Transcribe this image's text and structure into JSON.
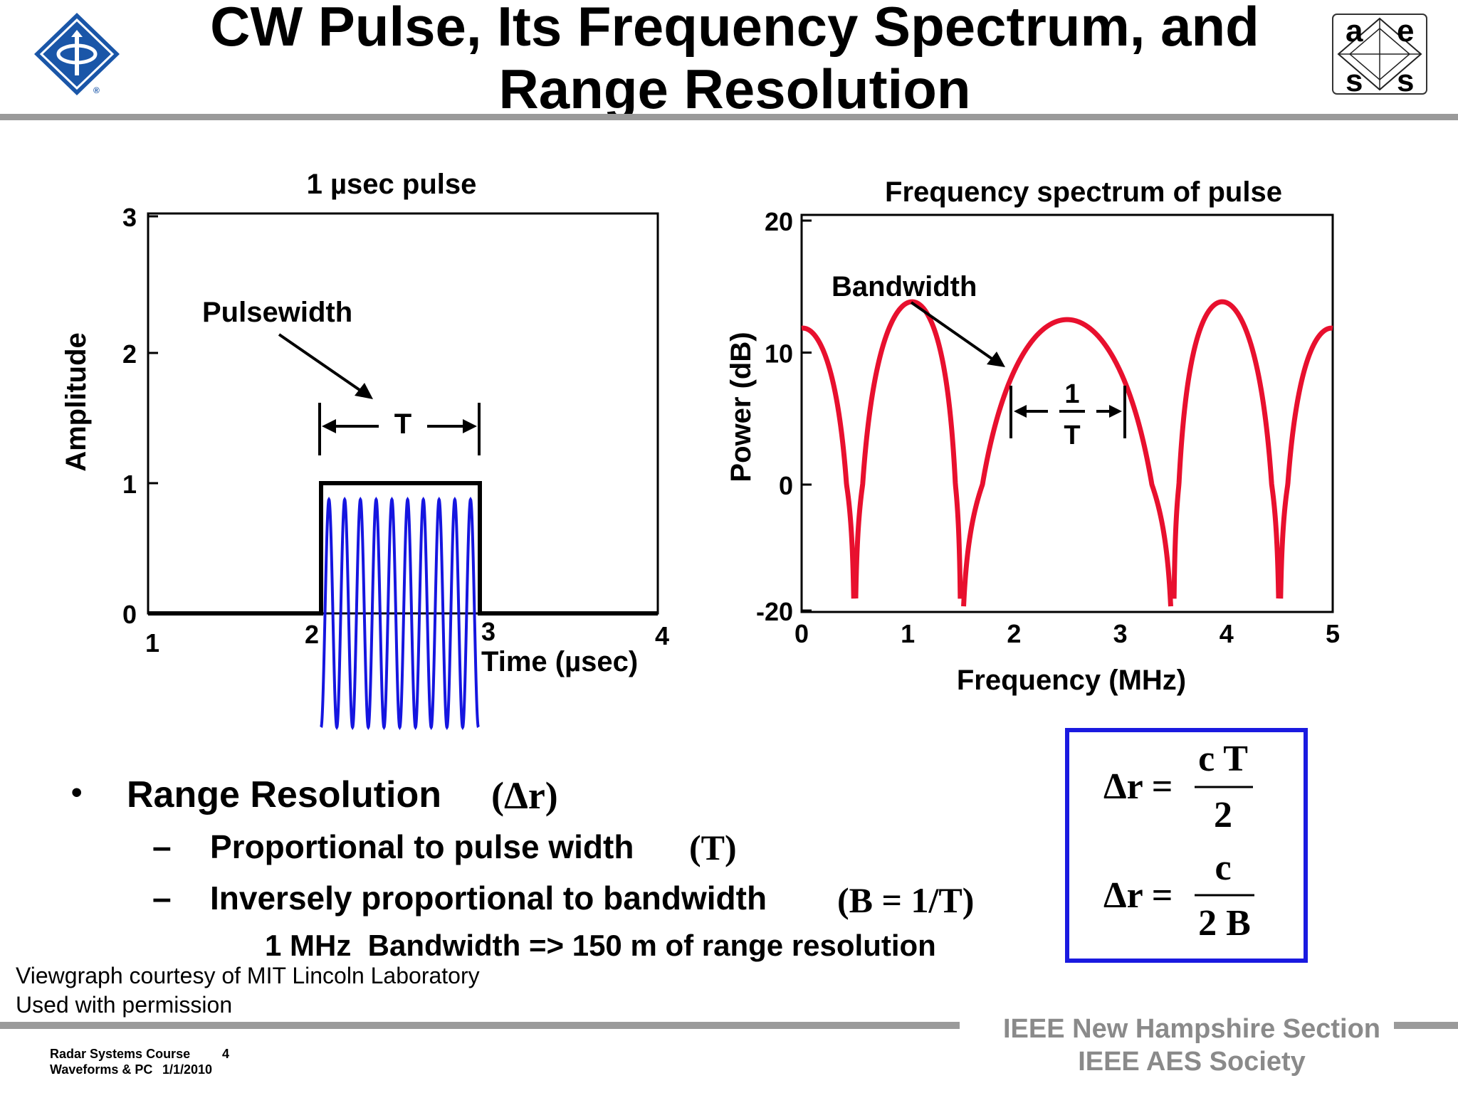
{
  "title": {
    "line1": "CW Pulse, Its Frequency Spectrum, and",
    "line2": "Range Resolution"
  },
  "logos": {
    "left": {
      "icon": "ieee-diamond-logo",
      "mark": "®"
    },
    "right": {
      "icon": "aess-logo",
      "letters": [
        "a",
        "e",
        "s",
        "s"
      ]
    }
  },
  "colors": {
    "pulse_wave": "#1515e0",
    "spectrum": "#e8102e",
    "formula_box": "#1a1ae0",
    "divider": "#9a9a9a",
    "footer_text": "#8a8a8a",
    "logo_blue": "#1a56a8"
  },
  "chart_data": [
    {
      "type": "line",
      "title": "1 µsec pulse",
      "xlabel": "Time (µsec)",
      "ylabel": "Amplitude",
      "xlim": [
        1,
        4
      ],
      "ylim": [
        0,
        3
      ],
      "x_ticks": [
        "1",
        "2",
        "3",
        "4"
      ],
      "y_ticks": [
        "0",
        "1",
        "2",
        "3"
      ],
      "series": [
        {
          "kind": "envelope",
          "x": [
            1,
            2,
            2,
            3,
            3,
            4
          ],
          "y": [
            0,
            0,
            1,
            1,
            0,
            0
          ]
        },
        {
          "kind": "carrier",
          "start": 2,
          "end": 3,
          "amplitude": 0.85,
          "cycles": 10
        }
      ],
      "annotations": [
        {
          "text": "Pulsewidth"
        },
        {
          "text": "T",
          "from": 2,
          "to": 3
        }
      ]
    },
    {
      "type": "line",
      "title": "Frequency spectrum of pulse",
      "xlabel": "Frequency (MHz)",
      "ylabel": "Power (dB)",
      "xlim": [
        0,
        5
      ],
      "ylim": [
        -20,
        20
      ],
      "x_ticks": [
        "0",
        "1",
        "2",
        "3",
        "4",
        "5"
      ],
      "y_ticks": [
        "-20",
        "0",
        "10",
        "20"
      ],
      "series": [
        {
          "kind": "sinc_squared_db",
          "center": 2.5,
          "null_spacing": 1,
          "peak_db": 12.5
        }
      ],
      "annotations": [
        {
          "text": "Bandwidth"
        },
        {
          "numerator": "1",
          "denominator": "T",
          "from": 2,
          "to": 3
        }
      ]
    }
  ],
  "bullets": {
    "main": {
      "marker": "•",
      "text": "Range Resolution",
      "symbol": "(Δr)"
    },
    "sub1": {
      "marker": "–",
      "text": "Proportional to pulse width",
      "symbol": "(T)"
    },
    "sub2": {
      "marker": "–",
      "text": "Inversely proportional to bandwidth",
      "symbol": "(B = 1/T)"
    },
    "note": "1 MHz  Bandwidth => 150 m of range resolution"
  },
  "formulas": {
    "f1": {
      "lhs": "Δr =",
      "numerator": "c T",
      "denominator": "2"
    },
    "f2": {
      "lhs": "Δr =",
      "numerator": "c",
      "denominator": "2 B"
    }
  },
  "credits": {
    "line1": "Viewgraph courtesy of MIT Lincoln Laboratory",
    "line2": "Used with permission"
  },
  "footer": {
    "course": "Radar Systems Course",
    "page": "4",
    "module": "Waveforms & PC",
    "date": "1/1/2010",
    "org1": "IEEE New Hampshire Section",
    "org2": "IEEE AES Society"
  }
}
